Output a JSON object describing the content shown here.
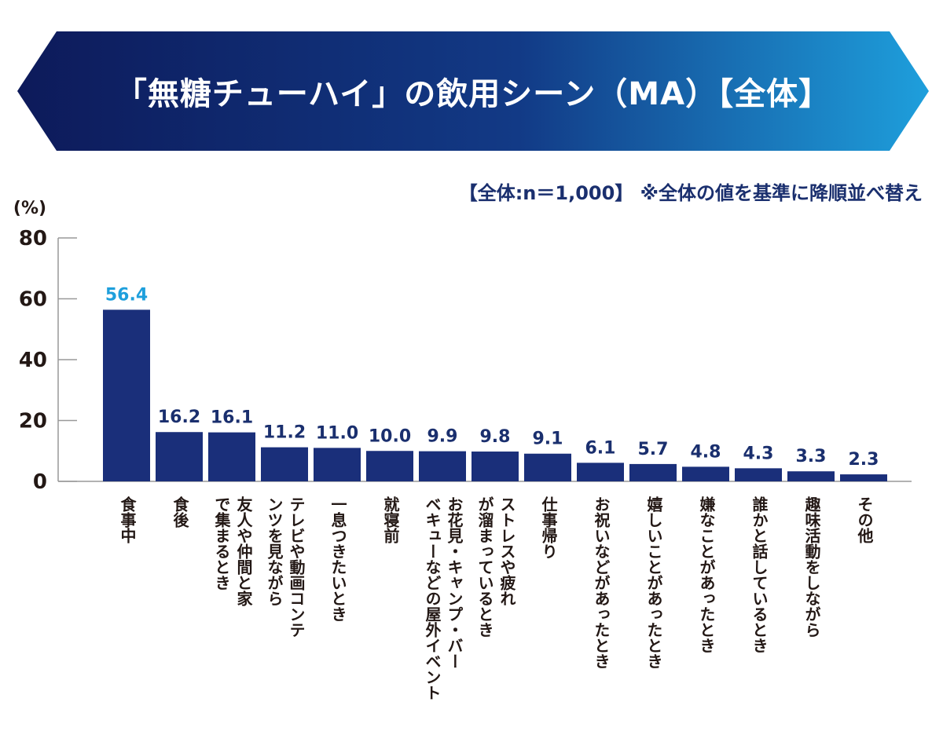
{
  "header": {
    "title": "「無糖チューハイ」の飲用シーン（MA）【全体】",
    "note": "【全体:n＝1,000】 ※全体の値を基準に降順並べ替え",
    "gradient_start": "#0d1a5a",
    "gradient_end": "#1e9fdc"
  },
  "chart_data": {
    "type": "bar",
    "ylabel": "(%)",
    "ylim": [
      0,
      80
    ],
    "yticks": [
      "0",
      "20",
      "40",
      "60",
      "80"
    ],
    "categories": [
      "食事中",
      "食後",
      "友人や仲間と家で集まるとき",
      "テレビや動画コンテンツを見ながら",
      "一息つきたいとき",
      "就寝前",
      "お花見・キャンプ・バーベキューなどの屋外イベント",
      "ストレスや疲れが溜まっているとき",
      "仕事帰り",
      "お祝いなどがあったとき",
      "嬉しいことがあったとき",
      "嫌なことがあったとき",
      "誰かと話しているとき",
      "趣味活動をしながら",
      "その他"
    ],
    "values": [
      56.4,
      16.2,
      16.1,
      11.2,
      11.0,
      10.0,
      9.9,
      9.8,
      9.1,
      6.1,
      5.7,
      4.8,
      4.3,
      3.3,
      2.3
    ],
    "value_labels": [
      "56.4",
      "16.2",
      "16.1",
      "11.2",
      "11.0",
      "10.0",
      "9.9",
      "9.8",
      "9.1",
      "6.1",
      "5.7",
      "4.8",
      "4.3",
      "3.3",
      "2.3"
    ],
    "bar_color": "#1a2f7a",
    "highlight_label_color": "#1e9fdc",
    "label_color": "#1a2f6e",
    "axis_color": "#999999"
  }
}
